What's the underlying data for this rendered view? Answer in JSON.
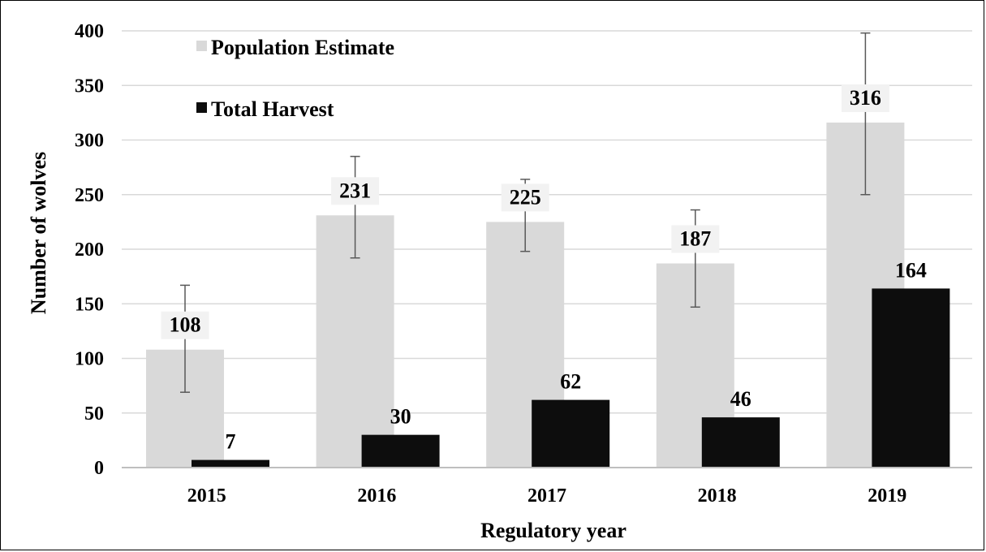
{
  "chart_data": {
    "type": "bar",
    "title": "",
    "xlabel": "Regulatory year",
    "ylabel": "Number of wolves",
    "categories": [
      "2015",
      "2016",
      "2017",
      "2018",
      "2019"
    ],
    "ylim": [
      0,
      400
    ],
    "yticks": [
      0,
      50,
      100,
      150,
      200,
      250,
      300,
      350,
      400
    ],
    "grid": true,
    "legend_position": "top-left",
    "series": [
      {
        "name": "Population Estimate",
        "color": "#d9d9d9",
        "values": [
          108,
          231,
          225,
          187,
          316
        ],
        "error_low": [
          69,
          192,
          198,
          147,
          250
        ],
        "error_high": [
          167,
          285,
          264,
          236,
          398
        ]
      },
      {
        "name": "Total Harvest",
        "color": "#0d0d0d",
        "values": [
          7,
          30,
          62,
          46,
          164
        ]
      }
    ]
  }
}
